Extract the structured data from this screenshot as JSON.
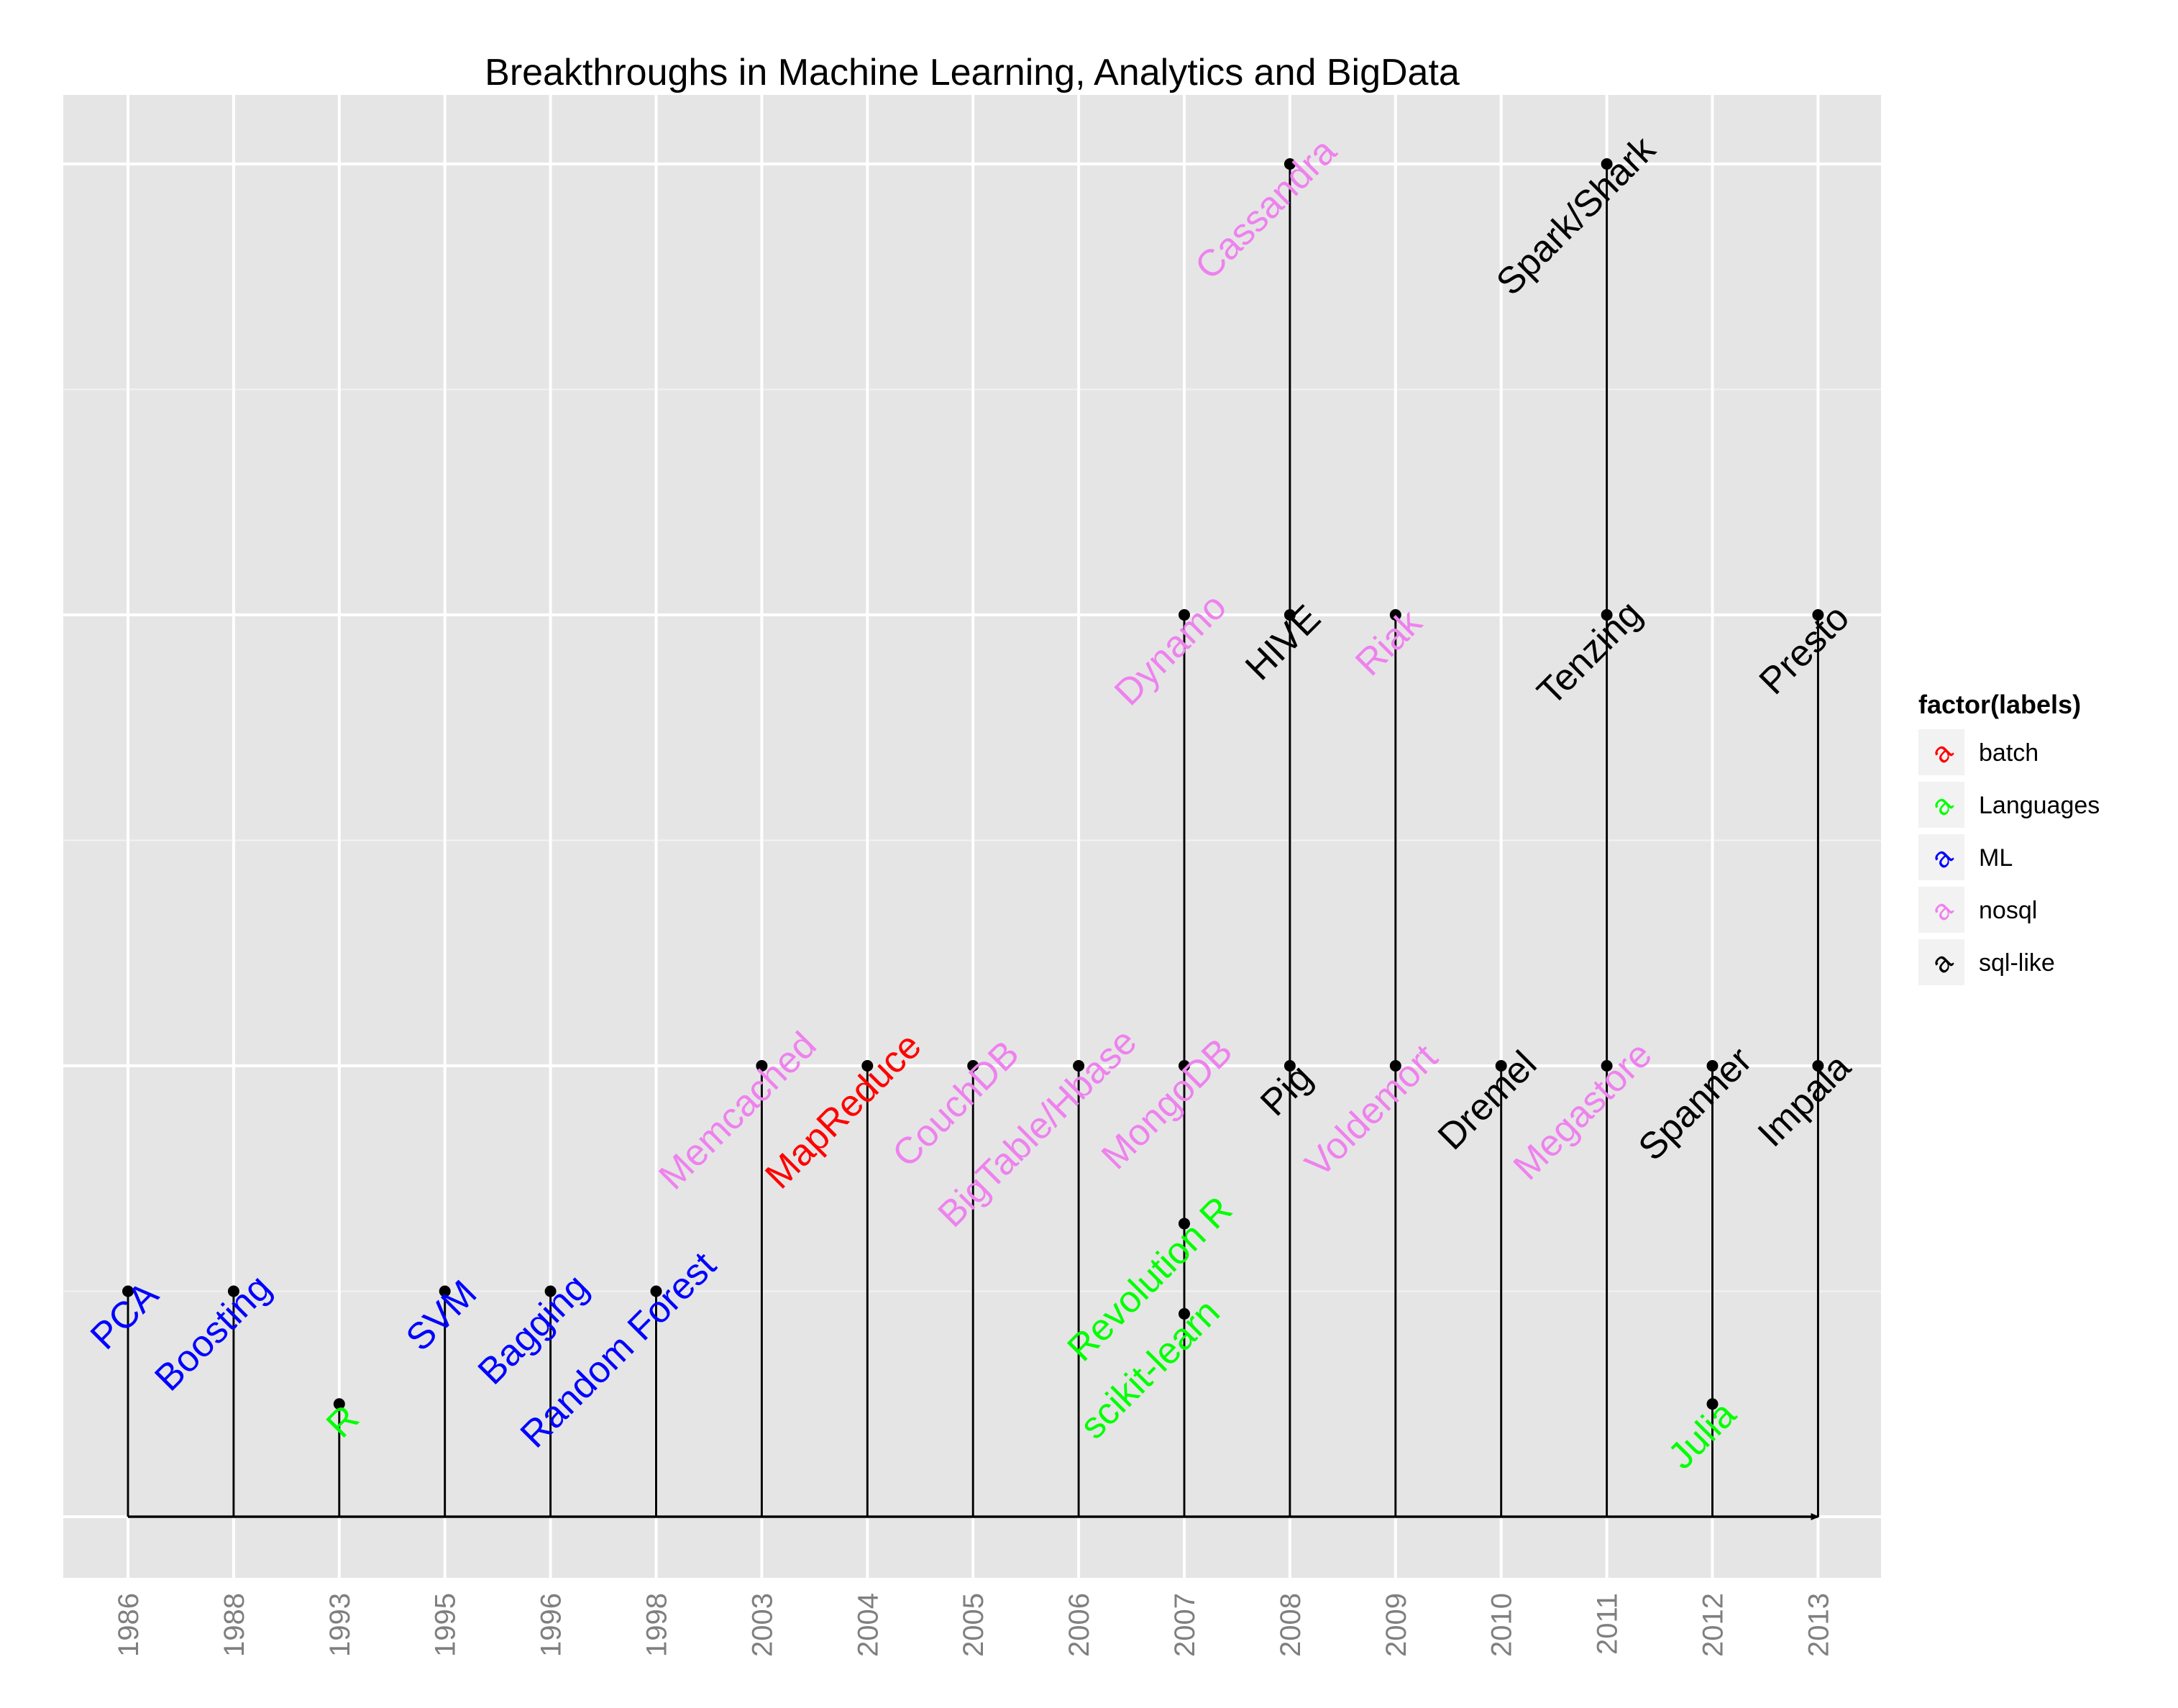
{
  "chart_data": {
    "type": "timeline",
    "title": "Breakthroughs in Machine Learning, Analytics and BigData",
    "xlabel": "",
    "ylabel": "",
    "grid": true,
    "legend_position": "right",
    "legend_title": "factor(labels)",
    "categories": [
      "1986",
      "1988",
      "1993",
      "1995",
      "1996",
      "1998",
      "2003",
      "2004",
      "2005",
      "2006",
      "2007",
      "2008",
      "2009",
      "2010",
      "2011",
      "2012",
      "2013"
    ],
    "ylim": [
      -0.3,
      3.1
    ],
    "legend": [
      {
        "name": "batch",
        "color": "#ff0000"
      },
      {
        "name": "Languages",
        "color": "#00ff00"
      },
      {
        "name": "ML",
        "color": "#0000ff"
      },
      {
        "name": "nosql",
        "color": "#ee82ee"
      },
      {
        "name": "sql-like",
        "color": "#000000"
      }
    ],
    "events": [
      {
        "year": "1986",
        "label": "PCA",
        "group": "ML",
        "height": 0.5
      },
      {
        "year": "1988",
        "label": "Boosting",
        "group": "ML",
        "height": 0.5
      },
      {
        "year": "1993",
        "label": "R",
        "group": "Languages",
        "height": 0.25
      },
      {
        "year": "1995",
        "label": "SVM",
        "group": "ML",
        "height": 0.5
      },
      {
        "year": "1996",
        "label": "Bagging",
        "group": "ML",
        "height": 0.5
      },
      {
        "year": "1998",
        "label": "Random Forest",
        "group": "ML",
        "height": 0.5
      },
      {
        "year": "2003",
        "label": "Memcached",
        "group": "nosql",
        "height": 1
      },
      {
        "year": "2004",
        "label": "MapReduce",
        "group": "batch",
        "height": 1
      },
      {
        "year": "2005",
        "label": "CouchDB",
        "group": "nosql",
        "height": 1
      },
      {
        "year": "2006",
        "label": "BigTable/Hbase",
        "group": "nosql",
        "height": 1
      },
      {
        "year": "2007",
        "label": "MongoDB",
        "group": "nosql",
        "height": 1
      },
      {
        "year": "2007",
        "label": "Revolution R",
        "group": "Languages",
        "height": 0.65
      },
      {
        "year": "2007",
        "label": "scikit-learn",
        "group": "Languages",
        "height": 0.45
      },
      {
        "year": "2007",
        "label": "Dynamo",
        "group": "nosql",
        "height": 2
      },
      {
        "year": "2008",
        "label": "Cassandra",
        "group": "nosql",
        "height": 3
      },
      {
        "year": "2008",
        "label": "HIVE",
        "group": "sql-like",
        "height": 2
      },
      {
        "year": "2008",
        "label": "Pig",
        "group": "sql-like",
        "height": 1
      },
      {
        "year": "2009",
        "label": "Riak",
        "group": "nosql",
        "height": 2
      },
      {
        "year": "2009",
        "label": "Voldemort",
        "group": "nosql",
        "height": 1
      },
      {
        "year": "2010",
        "label": "Dremel",
        "group": "sql-like",
        "height": 1
      },
      {
        "year": "2011",
        "label": "Spark/Shark",
        "group": "sql-like",
        "height": 3
      },
      {
        "year": "2011",
        "label": "Tenzing",
        "group": "sql-like",
        "height": 2
      },
      {
        "year": "2011",
        "label": "Megastore",
        "group": "nosql",
        "height": 1
      },
      {
        "year": "2012",
        "label": "Spanner",
        "group": "sql-like",
        "height": 1
      },
      {
        "year": "2012",
        "label": "Julia",
        "group": "Languages",
        "height": 0.25
      },
      {
        "year": "2013",
        "label": "Presto",
        "group": "sql-like",
        "height": 2
      },
      {
        "year": "2013",
        "label": "Impala",
        "group": "sql-like",
        "height": 1
      }
    ]
  }
}
